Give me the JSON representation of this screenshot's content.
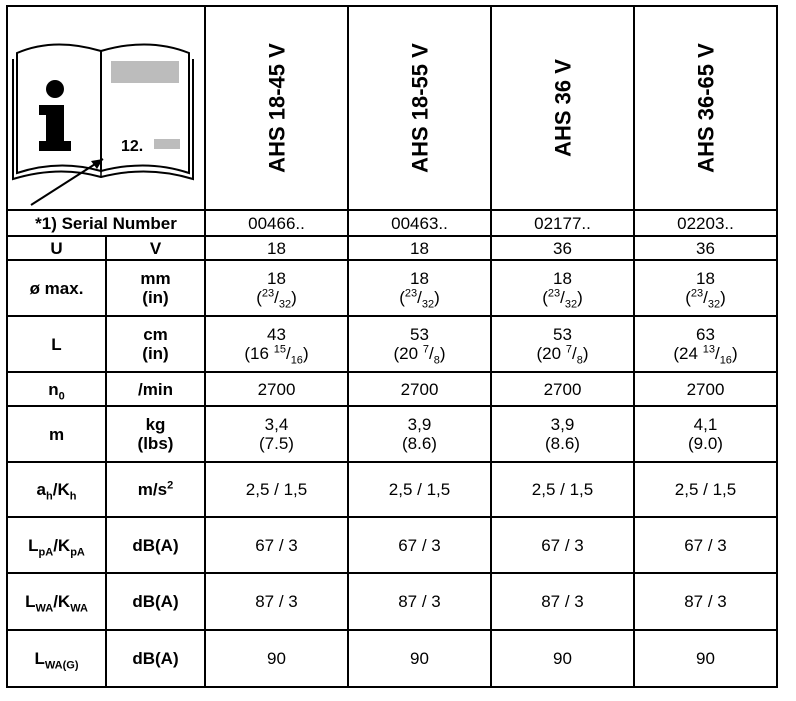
{
  "header": {
    "illustration": {
      "icon": "info-book-icon",
      "page_ref": "12."
    },
    "models": [
      "AHS 18-45 V",
      "AHS 18-55 V",
      "AHS 36 V",
      "AHS 36-65 V"
    ]
  },
  "serial": {
    "label": "*1) Serial Number",
    "values": [
      "00466..",
      "00463..",
      "02177..",
      "02203.."
    ]
  },
  "rows": {
    "voltage": {
      "symbol": "U",
      "unit": "V",
      "values": [
        "18",
        "18",
        "36",
        "36"
      ]
    },
    "diameter": {
      "symbol": "ø max.",
      "unit": "mm",
      "unit2": "(in)",
      "values": [
        "18",
        "18",
        "18",
        "18"
      ],
      "alt": [
        {
          "num": "23",
          "den": "32"
        },
        {
          "num": "23",
          "den": "32"
        },
        {
          "num": "23",
          "den": "32"
        },
        {
          "num": "23",
          "den": "32"
        }
      ]
    },
    "length": {
      "symbol": "L",
      "unit": "cm",
      "unit2": "(in)",
      "values": [
        "43",
        "53",
        "53",
        "63"
      ],
      "alt": [
        {
          "whole": "16",
          "num": "15",
          "den": "16"
        },
        {
          "whole": "20",
          "num": "7",
          "den": "8"
        },
        {
          "whole": "20",
          "num": "7",
          "den": "8"
        },
        {
          "whole": "24",
          "num": "13",
          "den": "16"
        }
      ]
    },
    "speed": {
      "symbol": "n",
      "symbol_sub": "0",
      "unit": "/min",
      "values": [
        "2700",
        "2700",
        "2700",
        "2700"
      ]
    },
    "weight": {
      "symbol": "m",
      "unit": "kg",
      "unit2": "(lbs)",
      "values": [
        "3,4",
        "3,9",
        "3,9",
        "4,1"
      ],
      "alt": [
        "(7.5)",
        "(8.6)",
        "(8.6)",
        "(9.0)"
      ]
    },
    "vibration": {
      "symbol_a": "a",
      "sub_a": "h",
      "sep": "/",
      "symbol_b": "K",
      "sub_b": "h",
      "unit": "m/s",
      "unit_sup": "2",
      "values": [
        "2,5 / 1,5",
        "2,5 / 1,5",
        "2,5 / 1,5",
        "2,5 / 1,5"
      ]
    },
    "sound_pressure": {
      "symbol_a": "L",
      "sub_a": "pA",
      "sep": "/",
      "symbol_b": "K",
      "sub_b": "pA",
      "unit": "dB(A)",
      "values": [
        "67 / 3",
        "67 / 3",
        "67 / 3",
        "67 / 3"
      ]
    },
    "sound_power": {
      "symbol_a": "L",
      "sub_a": "WA",
      "sep": "/",
      "symbol_b": "K",
      "sub_b": "WA",
      "unit": "dB(A)",
      "values": [
        "87 / 3",
        "87 / 3",
        "87 / 3",
        "87 / 3"
      ]
    },
    "guaranteed_power": {
      "symbol_a": "L",
      "sub_a": "WA(G)",
      "unit": "dB(A)",
      "values": [
        "90",
        "90",
        "90",
        "90"
      ]
    }
  }
}
